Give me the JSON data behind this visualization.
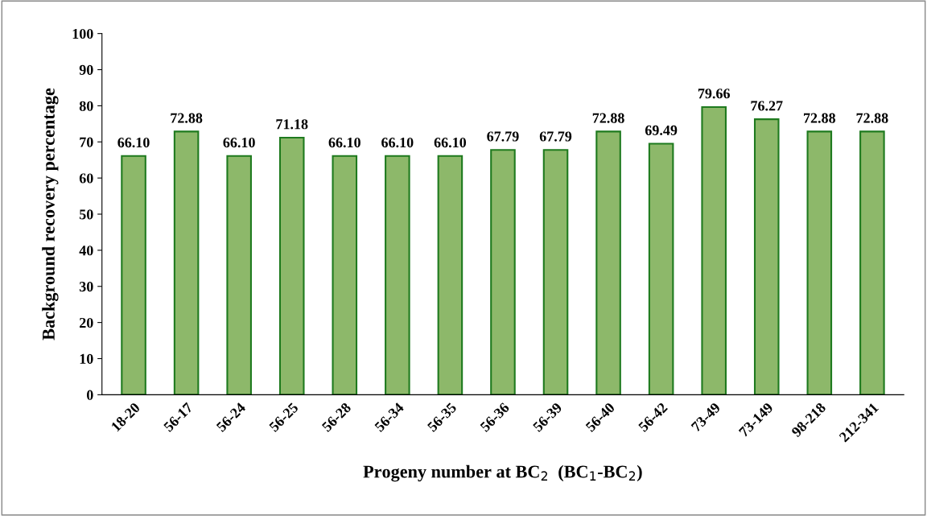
{
  "chart_data": {
    "type": "bar",
    "xlabel": "Progeny number at BC$_{2}$  (BC$_{1}$-BC$_{2}$)",
    "ylabel": "Background recovery percentage",
    "categories": [
      "18-20",
      "56-17",
      "56-24",
      "56-25",
      "56-28",
      "56-34",
      "56-35",
      "56-36",
      "56-39",
      "56-40",
      "56-42",
      "73-49",
      "73-149",
      "98-218",
      "212-341"
    ],
    "values": [
      66.1,
      72.88,
      66.1,
      71.18,
      66.1,
      66.1,
      66.1,
      67.79,
      67.79,
      72.88,
      69.49,
      79.66,
      76.27,
      72.88,
      72.88
    ],
    "value_labels": [
      "66.10",
      "72.88",
      "66.10",
      "71.18",
      "66.10",
      "66.10",
      "66.10",
      "67.79",
      "67.79",
      "72.88",
      "69.49",
      "79.66",
      "76.27",
      "72.88",
      "72.88"
    ],
    "color": "#8db86a",
    "ylim": [
      0,
      100
    ],
    "yticks": [
      0,
      10,
      20,
      30,
      40,
      50,
      60,
      70,
      80,
      90,
      100
    ]
  }
}
